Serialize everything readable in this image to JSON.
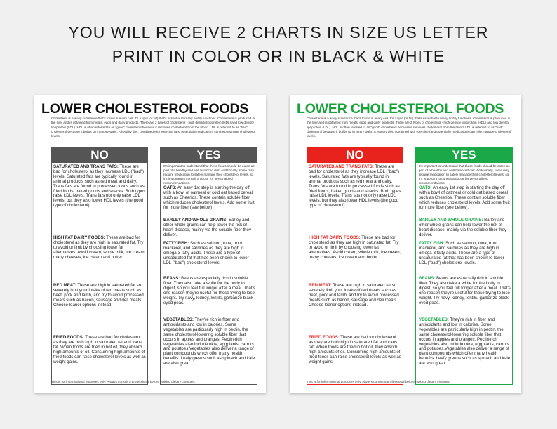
{
  "headline": {
    "line1": "YOU WILL RECEIVE 2 CHARTS IN SIZE US LETTER",
    "line2": "PRINT IN COLOR OR IN BLACK & WHITE"
  },
  "chart": {
    "title": "LOWER CHOLESTEROL FOODS",
    "intro": "Cholesterol is a waxy substance that's found in every cell. It's a lipid (or fat) that's essential to many bodily functions. Cholesterol is produced in the liver and is obtained from meats, eggs and dairy products. There are 2 types of cholesterol - high density lipoprotein (HDL) and low density lipoprotein (LDL). HDL is often referred to as \"good\" cholesterol because it removes cholesterol from the blood. LDL is referred to as \"bad\" cholesterol because it builds up in artery walls. A healthy diet, combined with exercise (and potentially medication) can help manage cholesterol levels.",
    "no_label": "NO",
    "yes_label": "YES",
    "no_items": [
      {
        "label": "SATURATED AND TRANS FATS:",
        "text": " These are bad for cholesterol as they increase LDL (\"bad\") levels. Saturated fats are typically found in animal products such as red meat and dairy. Trans fats are found in processed foods such as fried foods, baked goods and snacks. Both types raise LDL levels. Trans fats not only raise LDL levels, but they also lower HDL levels (the good type of cholesterol)."
      },
      {
        "label": "HIGH FAT DAIRY FOODS:",
        "text": " These are bad for cholesterol as they are high in saturated fat. Try to avoid or limit by choosing lower fat alternatives. Avoid cream, whole milk, ice cream, many cheeses, ice cream and butter."
      },
      {
        "label": "RED MEAT:",
        "text": " These are high in saturated fat so severely limit your intake of red meats such as beef, pork and lamb, and try to avoid processed meats such as bacon, sausage and deli meats. Choose leaner options instead."
      },
      {
        "label": "FRIED FOODS:",
        "text": " These are bad for cholesterol as they are both high in saturated fat and trans fat. When foods are fried in hot oil, they absorb high amounts of oil. Consuming high amounts of fried foods can raise cholesterol levels as well as weight gains."
      }
    ],
    "yes_intro": "It's important to understand that these foods should be eaten as part of a healthy and well balanced diet. Additionally, some may require medication to safely manage their cholesterol levels, so it's important to consult a doctor for personalized recommendations.",
    "yes_items": [
      {
        "label": "OATS:",
        "text": " An easy 1st step is starting the day off with a bowl of oatmeal or cold oat based cereal such as Cheerios. These contain soluble fiber which reduces cholesterol levels. Add some fruit for more fiber (see below)."
      },
      {
        "label": "BARLEY AND WHOLE GRAINS:",
        "text": " Barley and other whole grains can help lower the risk of heart disease, mainly via the soluble fiber they deliver."
      },
      {
        "label": "FATTY FISH:",
        "text": " Such as salmon, tuna, trout mackerel, and sardines as they are high in omega-3 fatty acids. These are a type of unsaturated fat that has been shown to lower LDL (\"bad\") cholesterol levels."
      },
      {
        "label": "BEANS:",
        "text": " Beans are especially rich in soluble fiber. They also take a while for the body to digest, so you feel full longer after a meal. That's one reason they're useful for those trying to lose weight. Try navy, kidney, lentils, garbanzo black-eyed peas."
      },
      {
        "label": "VEGETABLES:",
        "text": " They're rich in fiber and antioxidants and low in calories. Some vegetables are particularly high in pectin, the same cholesterol-lowering soluble fiber that occurs in apples and oranges. Pectin-rich vegetables also include okra, eggplants, carrots and potatoes.Vegetables also deliver a range of plant compounds which offer many health benefits. Leafy greens such as spinach and kale are also great."
      }
    ],
    "footer": "This is for informational purposes only. Always consult a professional before making dietary changes."
  },
  "colors": {
    "green": "#1aa848",
    "red": "#e8231e",
    "gray": "#555555"
  }
}
